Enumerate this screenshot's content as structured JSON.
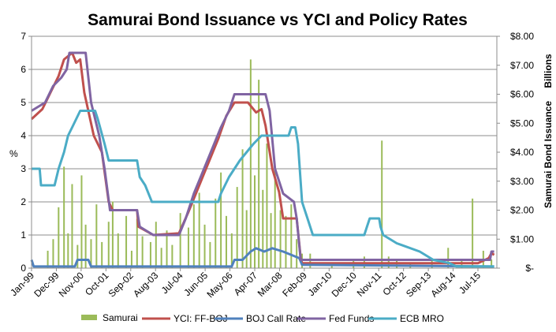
{
  "chart_data": {
    "type": "line",
    "title": "Samurai Bond Issuance vs YCI and Policy Rates",
    "ylabel_left": "%",
    "ylabel_right": "Samurai Bond Issuance",
    "right_unit_label": "Billions",
    "ylim_left": [
      0,
      7
    ],
    "ylim_right": [
      0,
      8
    ],
    "xlim": [
      1999.0,
      2016.2
    ],
    "grid": true,
    "legend_position": "bottom",
    "left_ticks": [
      "0",
      "1",
      "2",
      "3",
      "4",
      "5",
      "6",
      "7"
    ],
    "right_ticks": [
      "$-",
      "$1.00",
      "$2.00",
      "$3.00",
      "$4.00",
      "$5.00",
      "$6.00",
      "$7.00",
      "$8.00"
    ],
    "x_ticks": [
      {
        "label": "Jan-99",
        "x": 1999.0
      },
      {
        "label": "Dec-99",
        "x": 1999.917
      },
      {
        "label": "Nov-00",
        "x": 2000.833
      },
      {
        "label": "Oct-01",
        "x": 2001.75
      },
      {
        "label": "Sep-02",
        "x": 2002.667
      },
      {
        "label": "Aug-03",
        "x": 2003.583
      },
      {
        "label": "Jul-04",
        "x": 2004.5
      },
      {
        "label": "Jun-05",
        "x": 2005.417
      },
      {
        "label": "May-06",
        "x": 2006.333
      },
      {
        "label": "Apr-07",
        "x": 2007.25
      },
      {
        "label": "Mar-08",
        "x": 2008.167
      },
      {
        "label": "Feb-09",
        "x": 2009.083
      },
      {
        "label": "Jan-10",
        "x": 2010.0
      },
      {
        "label": "Dec-10",
        "x": 2010.917
      },
      {
        "label": "Nov-11",
        "x": 2011.833
      },
      {
        "label": "Oct-12",
        "x": 2012.75
      },
      {
        "label": "Sep-13",
        "x": 2013.667
      },
      {
        "label": "Aug-14",
        "x": 2014.583
      },
      {
        "label": "Jul-15",
        "x": 2015.5
      }
    ],
    "series": [
      {
        "name": "Samurai",
        "type": "bar",
        "axis": "right",
        "color": "#9BBB59",
        "points": [
          [
            1999.6,
            0.6
          ],
          [
            1999.8,
            1.0
          ],
          [
            2000.0,
            2.1
          ],
          [
            2000.2,
            3.5
          ],
          [
            2000.35,
            1.2
          ],
          [
            2000.5,
            2.9
          ],
          [
            2000.7,
            0.8
          ],
          [
            2000.85,
            3.2
          ],
          [
            2001.0,
            1.5
          ],
          [
            2001.2,
            1.0
          ],
          [
            2001.4,
            2.2
          ],
          [
            2001.6,
            0.9
          ],
          [
            2001.85,
            1.6
          ],
          [
            2002.0,
            2.3
          ],
          [
            2002.2,
            1.2
          ],
          [
            2002.5,
            1.8
          ],
          [
            2002.7,
            0.6
          ],
          [
            2002.9,
            1.7
          ],
          [
            2003.1,
            1.1
          ],
          [
            2003.4,
            0.9
          ],
          [
            2003.6,
            1.6
          ],
          [
            2003.8,
            0.7
          ],
          [
            2004.0,
            1.3
          ],
          [
            2004.2,
            0.8
          ],
          [
            2004.5,
            1.9
          ],
          [
            2004.8,
            1.4
          ],
          [
            2005.0,
            2.2
          ],
          [
            2005.2,
            2.6
          ],
          [
            2005.4,
            1.5
          ],
          [
            2005.6,
            0.9
          ],
          [
            2005.8,
            2.4
          ],
          [
            2006.0,
            3.3
          ],
          [
            2006.2,
            1.8
          ],
          [
            2006.4,
            1.2
          ],
          [
            2006.6,
            2.8
          ],
          [
            2006.8,
            4.1
          ],
          [
            2006.95,
            2.0
          ],
          [
            2007.1,
            7.2
          ],
          [
            2007.25,
            3.2
          ],
          [
            2007.4,
            6.5
          ],
          [
            2007.55,
            2.7
          ],
          [
            2007.7,
            4.3
          ],
          [
            2007.85,
            1.9
          ],
          [
            2008.0,
            3.4
          ],
          [
            2008.2,
            2.0
          ],
          [
            2008.4,
            1.8
          ],
          [
            2008.6,
            2.2
          ],
          [
            2008.8,
            1.0
          ],
          [
            2009.0,
            0.5
          ],
          [
            2009.3,
            0.5
          ],
          [
            2010.1,
            0.2
          ],
          [
            2010.9,
            0.3
          ],
          [
            2011.3,
            0.4
          ],
          [
            2011.95,
            4.4
          ],
          [
            2012.2,
            0.4
          ],
          [
            2012.5,
            0.3
          ],
          [
            2013.0,
            0.2
          ],
          [
            2013.8,
            0.3
          ],
          [
            2014.4,
            0.7
          ],
          [
            2014.9,
            0.3
          ],
          [
            2015.3,
            2.4
          ],
          [
            2015.7,
            0.6
          ],
          [
            2016.0,
            0.3
          ]
        ]
      },
      {
        "name": "YCI: FF-BOJ",
        "type": "line",
        "axis": "left",
        "color": "#C0504D",
        "points": [
          [
            1999.0,
            4.5
          ],
          [
            1999.4,
            4.8
          ],
          [
            1999.7,
            5.3
          ],
          [
            2000.0,
            5.8
          ],
          [
            2000.2,
            6.3
          ],
          [
            2000.5,
            6.5
          ],
          [
            2000.65,
            6.2
          ],
          [
            2000.8,
            6.3
          ],
          [
            2000.95,
            5.3
          ],
          [
            2001.3,
            4.0
          ],
          [
            2001.6,
            3.5
          ],
          [
            2001.85,
            2.0
          ],
          [
            2002.0,
            1.75
          ],
          [
            2002.9,
            1.75
          ],
          [
            2002.95,
            1.25
          ],
          [
            2003.5,
            1.0
          ],
          [
            2004.45,
            1.05
          ],
          [
            2004.8,
            1.7
          ],
          [
            2005.4,
            2.9
          ],
          [
            2005.9,
            3.9
          ],
          [
            2006.2,
            4.6
          ],
          [
            2006.5,
            5.0
          ],
          [
            2007.0,
            5.0
          ],
          [
            2007.3,
            4.7
          ],
          [
            2007.5,
            4.8
          ],
          [
            2007.65,
            4.3
          ],
          [
            2007.9,
            3.0
          ],
          [
            2008.15,
            2.3
          ],
          [
            2008.3,
            1.5
          ],
          [
            2008.8,
            1.5
          ],
          [
            2008.95,
            0.3
          ],
          [
            2009.0,
            0.15
          ],
          [
            2014.0,
            0.15
          ],
          [
            2015.5,
            0.15
          ],
          [
            2015.9,
            0.3
          ],
          [
            2016.0,
            0.45
          ],
          [
            2016.1,
            0.4
          ]
        ]
      },
      {
        "name": "BOJ Call Rate",
        "type": "line",
        "axis": "left",
        "color": "#4F81BD",
        "points": [
          [
            1999.0,
            0.25
          ],
          [
            1999.08,
            0.05
          ],
          [
            2000.6,
            0.05
          ],
          [
            2000.7,
            0.25
          ],
          [
            2001.1,
            0.25
          ],
          [
            2001.2,
            0.05
          ],
          [
            2006.4,
            0.05
          ],
          [
            2006.5,
            0.25
          ],
          [
            2006.8,
            0.25
          ],
          [
            2007.1,
            0.5
          ],
          [
            2007.3,
            0.6
          ],
          [
            2007.6,
            0.5
          ],
          [
            2007.9,
            0.6
          ],
          [
            2008.3,
            0.5
          ],
          [
            2008.9,
            0.3
          ],
          [
            2009.0,
            0.1
          ],
          [
            2016.1,
            0.05
          ]
        ]
      },
      {
        "name": "Fed Funds",
        "type": "line",
        "axis": "left",
        "color": "#8064A2",
        "points": [
          [
            1999.0,
            4.75
          ],
          [
            1999.5,
            5.0
          ],
          [
            1999.8,
            5.5
          ],
          [
            2000.1,
            5.75
          ],
          [
            2000.3,
            6.0
          ],
          [
            2000.4,
            6.5
          ],
          [
            2001.0,
            6.5
          ],
          [
            2001.2,
            5.0
          ],
          [
            2001.5,
            4.0
          ],
          [
            2001.7,
            3.0
          ],
          [
            2001.9,
            1.75
          ],
          [
            2002.9,
            1.75
          ],
          [
            2003.0,
            1.25
          ],
          [
            2003.5,
            1.0
          ],
          [
            2004.45,
            1.0
          ],
          [
            2004.7,
            1.5
          ],
          [
            2005.0,
            2.25
          ],
          [
            2005.5,
            3.25
          ],
          [
            2006.0,
            4.25
          ],
          [
            2006.3,
            4.75
          ],
          [
            2006.5,
            5.25
          ],
          [
            2007.65,
            5.25
          ],
          [
            2007.8,
            4.75
          ],
          [
            2008.0,
            3.0
          ],
          [
            2008.3,
            2.25
          ],
          [
            2008.7,
            2.0
          ],
          [
            2008.8,
            1.5
          ],
          [
            2008.95,
            0.25
          ],
          [
            2015.95,
            0.25
          ],
          [
            2016.0,
            0.5
          ],
          [
            2016.1,
            0.5
          ]
        ]
      },
      {
        "name": "ECB MRO",
        "type": "line",
        "axis": "left",
        "color": "#4BACC6",
        "points": [
          [
            1999.0,
            3.0
          ],
          [
            1999.3,
            3.0
          ],
          [
            1999.35,
            2.5
          ],
          [
            1999.85,
            2.5
          ],
          [
            2000.0,
            3.0
          ],
          [
            2000.2,
            3.5
          ],
          [
            2000.35,
            4.0
          ],
          [
            2000.5,
            4.25
          ],
          [
            2000.8,
            4.75
          ],
          [
            2001.35,
            4.75
          ],
          [
            2001.45,
            4.5
          ],
          [
            2001.7,
            3.75
          ],
          [
            2001.85,
            3.25
          ],
          [
            2002.9,
            3.25
          ],
          [
            2003.0,
            2.75
          ],
          [
            2003.2,
            2.5
          ],
          [
            2003.45,
            2.0
          ],
          [
            2005.9,
            2.0
          ],
          [
            2006.0,
            2.25
          ],
          [
            2006.3,
            2.75
          ],
          [
            2006.7,
            3.25
          ],
          [
            2006.95,
            3.5
          ],
          [
            2007.2,
            3.75
          ],
          [
            2007.5,
            4.0
          ],
          [
            2008.5,
            4.0
          ],
          [
            2008.6,
            4.25
          ],
          [
            2008.75,
            4.25
          ],
          [
            2008.85,
            3.75
          ],
          [
            2009.0,
            2.0
          ],
          [
            2009.2,
            1.5
          ],
          [
            2009.4,
            1.0
          ],
          [
            2011.3,
            1.0
          ],
          [
            2011.4,
            1.25
          ],
          [
            2011.5,
            1.5
          ],
          [
            2011.85,
            1.5
          ],
          [
            2011.9,
            1.25
          ],
          [
            2012.0,
            1.0
          ],
          [
            2012.5,
            0.75
          ],
          [
            2013.35,
            0.5
          ],
          [
            2013.85,
            0.25
          ],
          [
            2014.45,
            0.15
          ],
          [
            2014.7,
            0.05
          ],
          [
            2016.1,
            0.05
          ]
        ]
      }
    ]
  }
}
